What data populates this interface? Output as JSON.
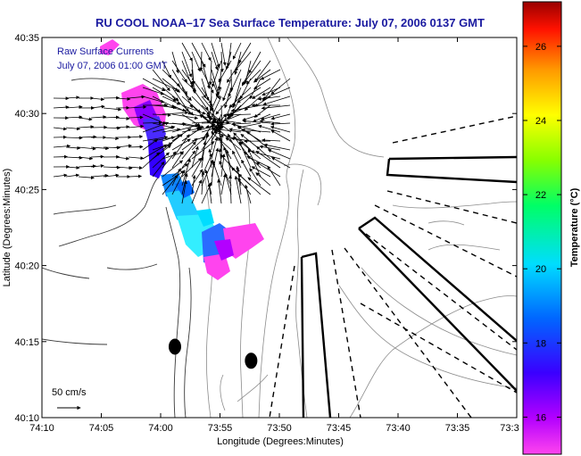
{
  "title": "RU COOL  NOAA–17  Sea Surface Temperature:  July 07, 2006 0137 GMT",
  "legend": {
    "line1": "Raw Surface Currents",
    "line2": "July 07, 2006 01:00 GMT"
  },
  "scale": {
    "label": "50 cm/s"
  },
  "axes": {
    "xlabel": "Longitude (Degrees:Minutes)",
    "ylabel": "Latitude (Degrees:Minutes)",
    "xticks": [
      "74:10",
      "74:05",
      "74:00",
      "73:55",
      "73:50",
      "73:45",
      "73:40",
      "73:35",
      "73:3"
    ],
    "yticks": [
      "40:35",
      "40:30",
      "40:25",
      "40:20",
      "40:15",
      "40:10"
    ]
  },
  "colorbar": {
    "label": "Temperature (°C)",
    "ticks": [
      "26",
      "24",
      "22",
      "20",
      "18",
      "16"
    ],
    "min": 15,
    "max": 27.2,
    "tick_values": [
      26,
      24,
      22,
      20,
      18,
      16
    ]
  },
  "map": {
    "lon_range": [
      -74.1667,
      -73.5
    ],
    "lat_range": [
      40.1667,
      40.5833
    ],
    "stations": [
      {
        "lon": -73.98,
        "lat": 40.2445
      },
      {
        "lon": -73.873,
        "lat": 40.229
      }
    ]
  }
}
